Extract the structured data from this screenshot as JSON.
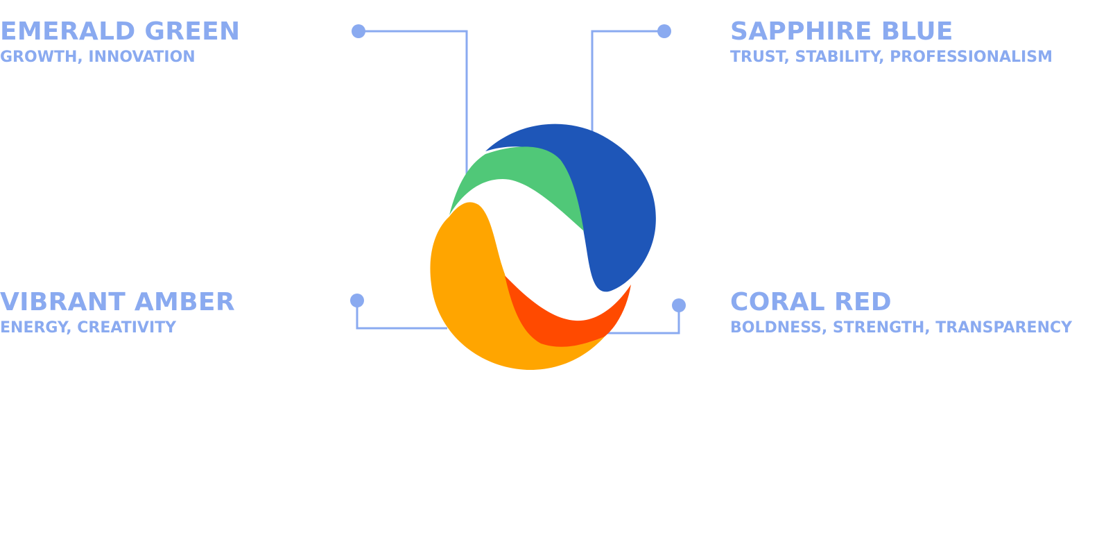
{
  "theme": {
    "label_color": "#8aaaf0",
    "connector_color": "#8aaaf0"
  },
  "colors": [
    {
      "key": "emerald",
      "title": "EMERALD GREEN",
      "subtitle": "GROWTH, INNOVATION",
      "swatch": "#50c878"
    },
    {
      "key": "sapphire",
      "title": "SAPPHIRE BLUE",
      "subtitle": "TRUST, STABILITY, PROFESSIONALISM",
      "swatch": "#1e56b8"
    },
    {
      "key": "amber",
      "title": "VIBRANT AMBER",
      "subtitle": "ENERGY, CREATIVITY",
      "swatch": "#ffa500"
    },
    {
      "key": "coral",
      "title": "CORAL RED",
      "subtitle": "BOLDNESS, STRENGTH, TRANSPARENCY",
      "swatch": "#ff4a00"
    }
  ]
}
